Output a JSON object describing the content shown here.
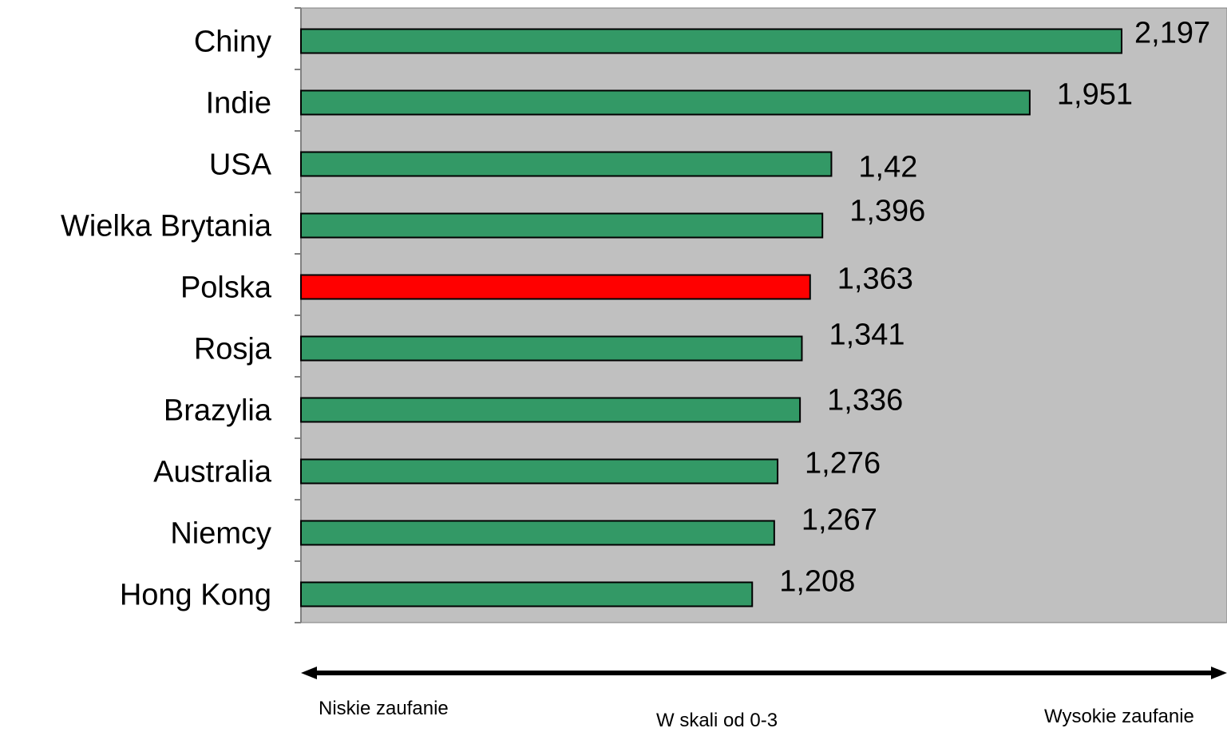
{
  "chart_data": {
    "type": "bar",
    "orientation": "horizontal",
    "categories": [
      "Chiny",
      "Indie",
      "USA",
      "Wielka Brytania",
      "Polska",
      "Rosja",
      "Brazylia",
      "Australia",
      "Niemcy",
      "Hong Kong"
    ],
    "values": [
      2.197,
      1.951,
      1.42,
      1.396,
      1.363,
      1.341,
      1.336,
      1.276,
      1.267,
      1.208
    ],
    "value_labels": [
      "2,197",
      "1,951",
      "1,42",
      "1,396",
      "1,363",
      "1,341",
      "1,336",
      "1,276",
      "1,267",
      "1,208"
    ],
    "highlight_category": "Polska",
    "xlim": [
      0,
      2.5
    ],
    "grid": false,
    "legend": "none",
    "colors": {
      "bar": "#339966",
      "highlight": "#ff0000",
      "plot_background": "#c0c0c0",
      "bar_outline": "#000000"
    }
  },
  "scale": {
    "low_label": "Niskie zaufanie",
    "center_label": "W skali od 0-3",
    "high_label": "Wysokie zaufanie"
  }
}
